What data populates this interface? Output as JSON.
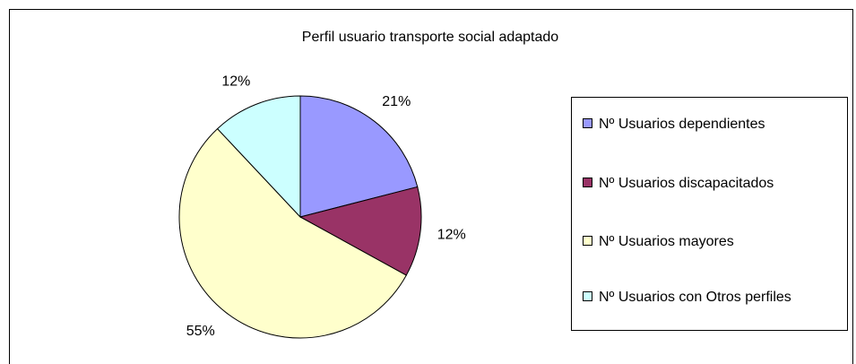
{
  "chart_data": {
    "type": "pie",
    "title": "Perfil usuario transporte social adaptado",
    "categories": [
      "Nº Usuarios dependientes",
      "Nº Usuarios discapacitados",
      "Nº Usuarios mayores",
      "Nº Usuarios con Otros perfiles"
    ],
    "values": [
      21,
      12,
      55,
      12
    ],
    "value_labels": [
      "21%",
      "12%",
      "55%",
      "12%"
    ],
    "colors": [
      "#9999ff",
      "#993366",
      "#ffffcc",
      "#ccffff"
    ],
    "legend": "right"
  }
}
